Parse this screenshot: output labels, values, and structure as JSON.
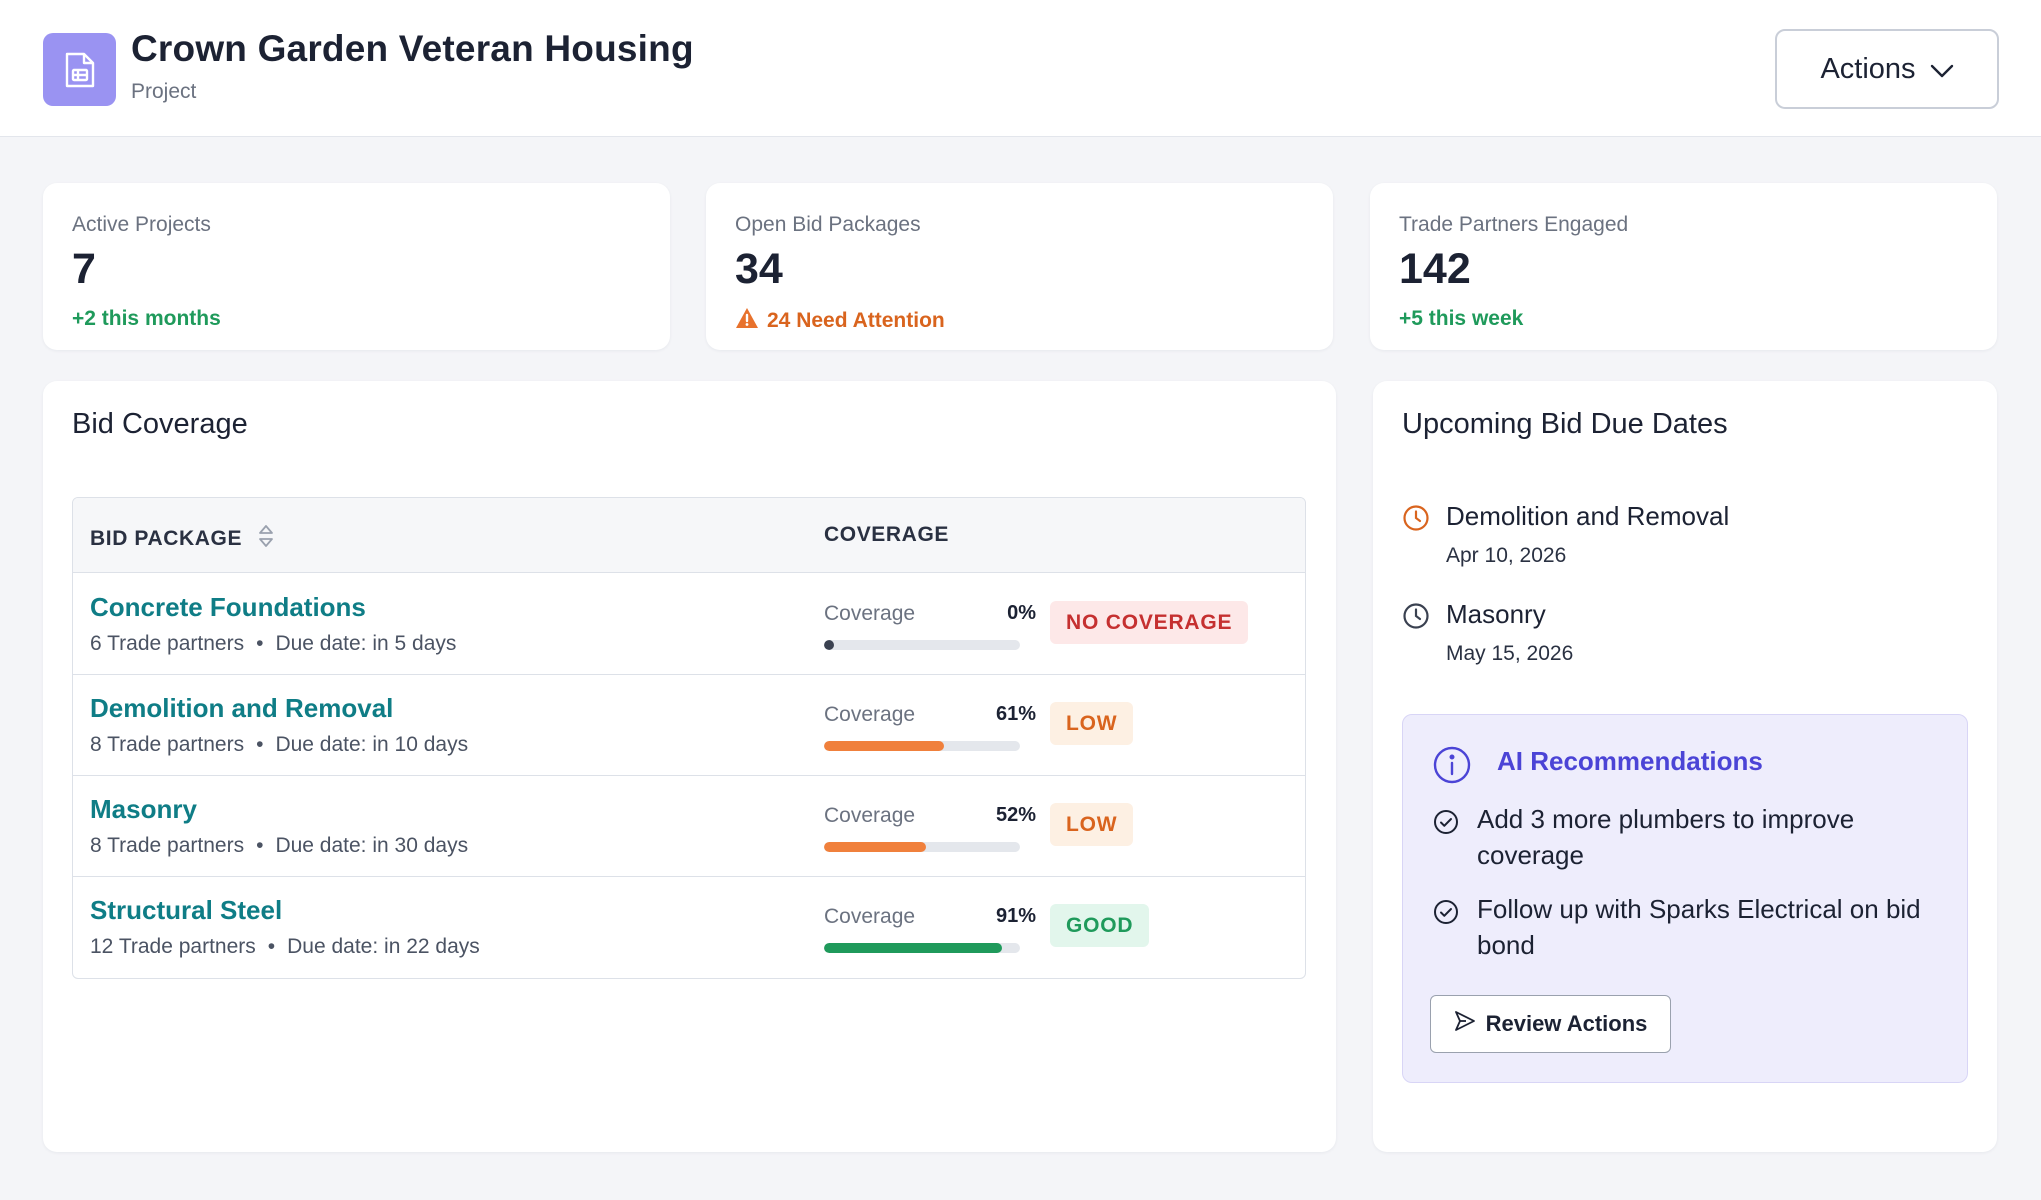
{
  "header": {
    "title": "Crown Garden Veteran Housing",
    "subtitle": "Project",
    "actions_label": "Actions"
  },
  "stats": [
    {
      "label": "Active Projects",
      "value": "7",
      "sub": "+2 this months",
      "tone": "green"
    },
    {
      "label": "Open Bid Packages",
      "value": "34",
      "sub": "24 Need Attention",
      "tone": "orange"
    },
    {
      "label": "Trade Partners Engaged",
      "value": "142",
      "sub": "+5 this week",
      "tone": "green"
    }
  ],
  "bid_coverage": {
    "title": "Bid Coverage",
    "columns": {
      "package": "BID PACKAGE",
      "coverage": "COVERAGE"
    },
    "coverage_label": "Coverage",
    "rows": [
      {
        "name": "Concrete Foundations",
        "partners": "6 Trade partners",
        "due": "Due date: in 5 days",
        "pct_label": "0%",
        "pct": 0,
        "badge": "NO COVERAGE",
        "status": "none"
      },
      {
        "name": "Demolition and Removal",
        "partners": "8 Trade partners",
        "due": "Due date: in 10 days",
        "pct_label": "61%",
        "pct": 61,
        "badge": "LOW",
        "status": "low"
      },
      {
        "name": "Masonry",
        "partners": "8 Trade partners",
        "due": "Due date: in 30 days",
        "pct_label": "52%",
        "pct": 52,
        "badge": "LOW",
        "status": "low"
      },
      {
        "name": "Structural Steel",
        "partners": "12 Trade partners",
        "due": "Due date: in 22 days",
        "pct_label": "91%",
        "pct": 91,
        "badge": "GOOD",
        "status": "good"
      }
    ]
  },
  "upcoming": {
    "title": "Upcoming Bid Due Dates",
    "items": [
      {
        "name": "Demolition and Removal",
        "date": "Apr 10, 2026",
        "icon": "clock-icon",
        "color": "#d9641e"
      },
      {
        "name": "Masonry",
        "date": "May 15, 2026",
        "icon": "clock-icon",
        "color": "#3a4150"
      }
    ]
  },
  "ai": {
    "title": "AI Recommendations",
    "items": [
      "Add 3 more plumbers to improve coverage",
      "Follow up with Sparks Electrical on bid bond"
    ],
    "button_label": "Review Actions"
  },
  "colors": {
    "accent_teal": "#0f7d86",
    "bar_none": "#3a4150",
    "bar_low": "#f0803c",
    "bar_good": "#1f9a5b",
    "ai_purple": "#4b44d6"
  }
}
